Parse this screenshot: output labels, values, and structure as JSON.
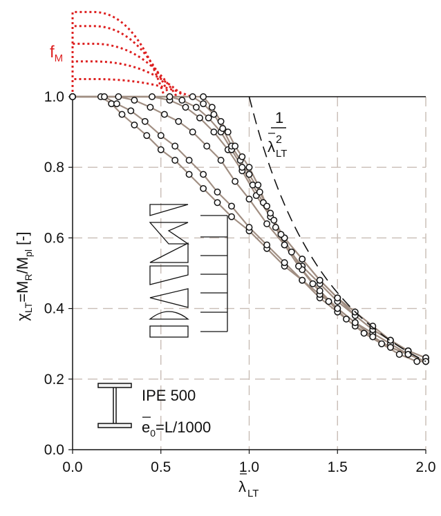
{
  "chart_data": {
    "type": "line",
    "xlabel": {
      "main": "λ",
      "sub": "LT"
    },
    "ylabel": {
      "a": "χ",
      "a_sub": "LT",
      "b": "=M",
      "b_sub": "R",
      "c": "/M",
      "c_sub": "pl",
      "d": " [-]"
    },
    "xlim": [
      0,
      2.0
    ],
    "ylim": [
      0,
      1.0
    ],
    "xticks": [
      "0.0",
      "0.5",
      "1.0",
      "1.5",
      "2.0"
    ],
    "yticks": [
      "0.0",
      "0.2",
      "0.4",
      "0.6",
      "0.8",
      "1.0"
    ],
    "grid": true,
    "fm_label": {
      "main": "f",
      "sub": "M"
    },
    "fm_curves": [
      {
        "x_flat_end": 0.12,
        "y_top": 1.24,
        "x_end": 0.52
      },
      {
        "x_flat_end": 0.12,
        "y_top": 1.2,
        "x_end": 0.55
      },
      {
        "x_flat_end": 0.12,
        "y_top": 1.15,
        "x_end": 0.59
      },
      {
        "x_flat_end": 0.12,
        "y_top": 1.1,
        "x_end": 0.63
      },
      {
        "x_flat_end": 0.12,
        "y_top": 1.05,
        "x_end": 0.67
      }
    ],
    "euler": {
      "label_num": "1",
      "label_den": "λ",
      "label_pow": "2",
      "label_sub": "LT"
    },
    "series": [
      {
        "x": [
          0,
          0.16,
          0.22,
          0.28,
          0.35,
          0.42,
          0.5,
          0.58,
          0.66,
          0.74,
          0.82,
          0.9,
          1.0,
          1.1,
          1.2,
          1.3,
          1.4,
          1.5,
          1.6,
          1.7,
          1.8,
          1.9,
          2.0
        ],
        "y": [
          1.0,
          1.0,
          0.98,
          0.95,
          0.92,
          0.89,
          0.85,
          0.82,
          0.78,
          0.74,
          0.7,
          0.66,
          0.62,
          0.57,
          0.52,
          0.48,
          0.43,
          0.39,
          0.35,
          0.32,
          0.29,
          0.27,
          0.25
        ]
      },
      {
        "x": [
          0,
          0.18,
          0.25,
          0.33,
          0.41,
          0.5,
          0.58,
          0.66,
          0.74,
          0.82,
          0.9,
          1.0,
          1.1,
          1.2,
          1.3,
          1.4,
          1.5,
          1.6,
          1.7,
          1.8,
          1.9,
          2.0
        ],
        "y": [
          1.0,
          1.0,
          0.98,
          0.96,
          0.93,
          0.89,
          0.86,
          0.82,
          0.78,
          0.73,
          0.69,
          0.63,
          0.58,
          0.53,
          0.48,
          0.44,
          0.4,
          0.36,
          0.33,
          0.3,
          0.27,
          0.25
        ]
      },
      {
        "x": [
          0,
          0.26,
          0.35,
          0.44,
          0.52,
          0.6,
          0.68,
          0.76,
          0.84,
          0.92,
          1.0,
          1.1,
          1.2,
          1.3,
          1.4,
          1.5,
          1.6,
          1.7,
          1.8,
          1.9,
          2.0
        ],
        "y": [
          1.0,
          1.0,
          0.99,
          0.97,
          0.95,
          0.93,
          0.9,
          0.86,
          0.82,
          0.76,
          0.71,
          0.64,
          0.58,
          0.52,
          0.47,
          0.42,
          0.38,
          0.34,
          0.31,
          0.28,
          0.26
        ]
      },
      {
        "x": [
          0,
          0.45,
          0.55,
          0.64,
          0.72,
          0.8,
          0.88,
          0.96,
          1.04,
          1.12,
          1.2,
          1.3,
          1.4,
          1.5,
          1.6,
          1.7,
          1.8,
          1.9,
          2.0
        ],
        "y": [
          1.0,
          1.0,
          0.99,
          0.97,
          0.94,
          0.9,
          0.85,
          0.79,
          0.72,
          0.66,
          0.6,
          0.54,
          0.48,
          0.43,
          0.38,
          0.34,
          0.31,
          0.28,
          0.26
        ]
      },
      {
        "x": [
          0,
          0.55,
          0.62,
          0.7,
          0.77,
          0.84,
          0.9,
          0.96,
          1.02,
          1.08,
          1.14,
          1.2,
          1.3,
          1.4,
          1.5,
          1.6,
          1.7,
          1.8,
          1.9,
          2.0
        ],
        "y": [
          1.0,
          1.0,
          0.99,
          0.97,
          0.94,
          0.9,
          0.85,
          0.8,
          0.75,
          0.7,
          0.65,
          0.6,
          0.54,
          0.48,
          0.43,
          0.39,
          0.35,
          0.31,
          0.28,
          0.26
        ]
      },
      {
        "x": [
          0,
          0.68,
          0.74,
          0.8,
          0.85,
          0.9,
          0.95,
          1.0,
          1.06,
          1.12,
          1.18,
          1.24,
          1.3,
          1.4,
          1.5,
          1.6,
          1.7,
          1.8,
          1.9,
          2.0
        ],
        "y": [
          1.0,
          1.0,
          0.98,
          0.95,
          0.91,
          0.86,
          0.82,
          0.78,
          0.73,
          0.67,
          0.61,
          0.56,
          0.51,
          0.45,
          0.4,
          0.36,
          0.32,
          0.29,
          0.27,
          0.25
        ]
      },
      {
        "x": [
          0,
          0.74,
          0.79,
          0.84,
          0.88,
          0.92,
          0.96,
          1.0,
          1.05,
          1.1,
          1.15,
          1.2,
          1.28,
          1.36,
          1.45,
          1.55,
          1.65,
          1.75,
          1.85,
          1.95,
          2.0
        ],
        "y": [
          1.0,
          1.0,
          0.97,
          0.93,
          0.9,
          0.86,
          0.83,
          0.8,
          0.75,
          0.69,
          0.63,
          0.58,
          0.52,
          0.47,
          0.42,
          0.37,
          0.33,
          0.3,
          0.27,
          0.25,
          0.25
        ]
      }
    ],
    "legend": {
      "section": "IPE 500",
      "imperfection": {
        "e": "e",
        "sub": "0",
        "rest": "=L/1000"
      }
    }
  }
}
